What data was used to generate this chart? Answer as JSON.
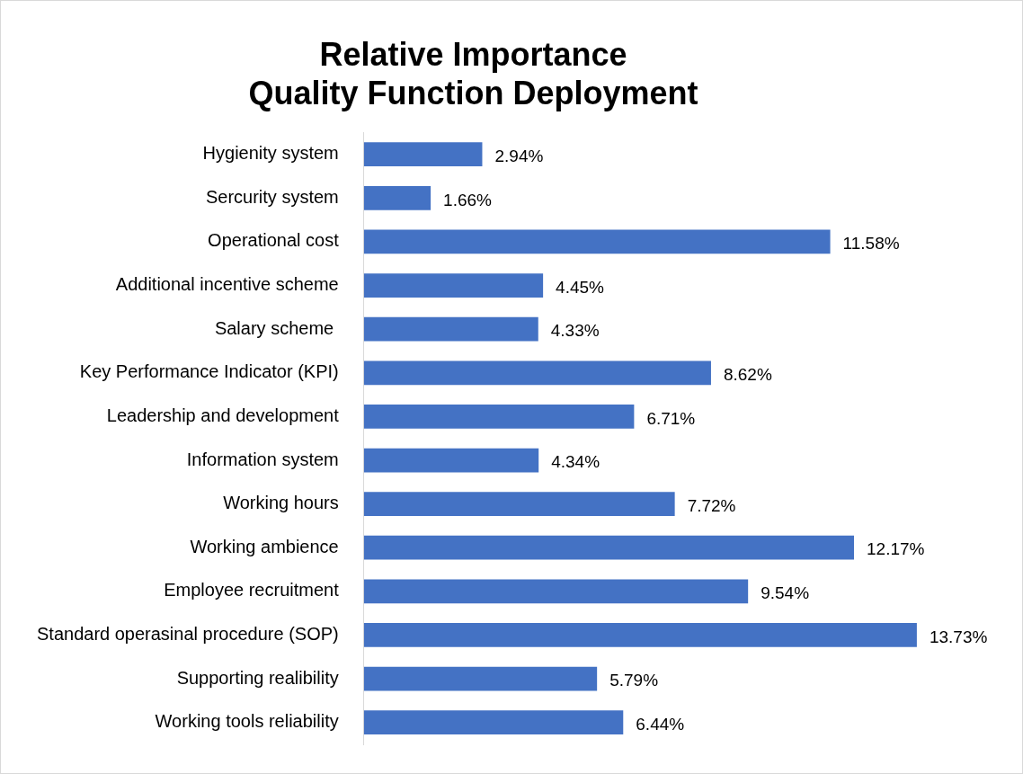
{
  "chart_data": {
    "type": "bar",
    "orientation": "horizontal",
    "title": "Relative Importance\nQuality Function Deployment",
    "categories": [
      "Hygienity system",
      "Sercurity system",
      "Operational cost",
      "Additional incentive scheme",
      "Salary scheme ",
      "Key Performance Indicator (KPI)",
      "Leadership and development",
      "Information system",
      "Working hours",
      "Working ambience",
      "Employee recruitment",
      "Standard operasinal procedure (SOP)",
      "Supporting realibility",
      "Working tools reliability"
    ],
    "values": [
      2.94,
      1.66,
      11.58,
      4.45,
      4.33,
      8.62,
      6.71,
      4.34,
      7.72,
      12.17,
      9.54,
      13.73,
      5.79,
      6.44
    ],
    "value_labels": [
      "2.94%",
      "1.66%",
      "11.58%",
      "4.45%",
      "4.33%",
      "8.62%",
      "6.71%",
      "4.34%",
      "7.72%",
      "12.17%",
      "9.54%",
      "13.73%",
      "5.79%",
      "6.44%"
    ],
    "color": "#4472c4",
    "grid": false,
    "legend": false
  }
}
